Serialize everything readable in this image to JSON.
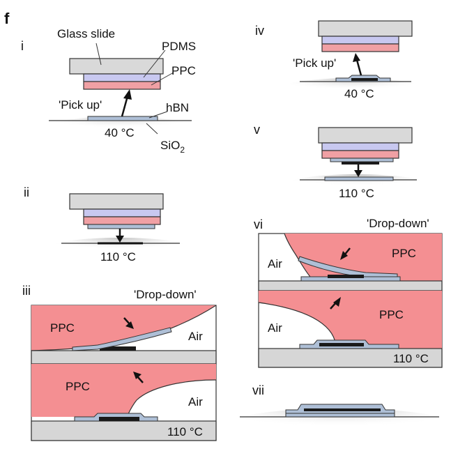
{
  "figure": {
    "panel_letter": "f",
    "colors": {
      "ppc": "#f0a0a4",
      "ppc_fill": "#f48f92",
      "pdms": "#c8c8f0",
      "glass": "#d9d9d9",
      "hbn": "#aebfd6",
      "graphite": "#1a1a1a",
      "substrate": "#d6d6d6",
      "ground_shadow": "#c4c4c4"
    },
    "steps": {
      "i": {
        "numeral": "i",
        "glass_label": "Glass slide",
        "pdms_label": "PDMS",
        "ppc_label": "PPC",
        "action_label": "'Pick up'",
        "hbn_label": "hBN",
        "temperature": "40 °C",
        "sio2_label": "SiO",
        "sio2_sub": "2"
      },
      "ii": {
        "numeral": "ii",
        "temperature": "110 °C"
      },
      "iii": {
        "numeral": "iii",
        "action_label": "'Drop-down'",
        "ppc_label_top": "PPC",
        "air_label_top": "Air",
        "ppc_label_bottom": "PPC",
        "air_label_bottom": "Air",
        "temperature": "110 °C"
      },
      "iv": {
        "numeral": "iv",
        "action_label": "'Pick up'",
        "temperature": "40 °C"
      },
      "v": {
        "numeral": "v",
        "temperature": "110 °C"
      },
      "vi": {
        "numeral": "vi",
        "action_label": "'Drop-down'",
        "air_label_top": "Air",
        "ppc_label_top": "PPC",
        "air_label_bottom": "Air",
        "ppc_label_bottom": "PPC",
        "temperature": "110 °C"
      },
      "vii": {
        "numeral": "vii"
      }
    }
  }
}
